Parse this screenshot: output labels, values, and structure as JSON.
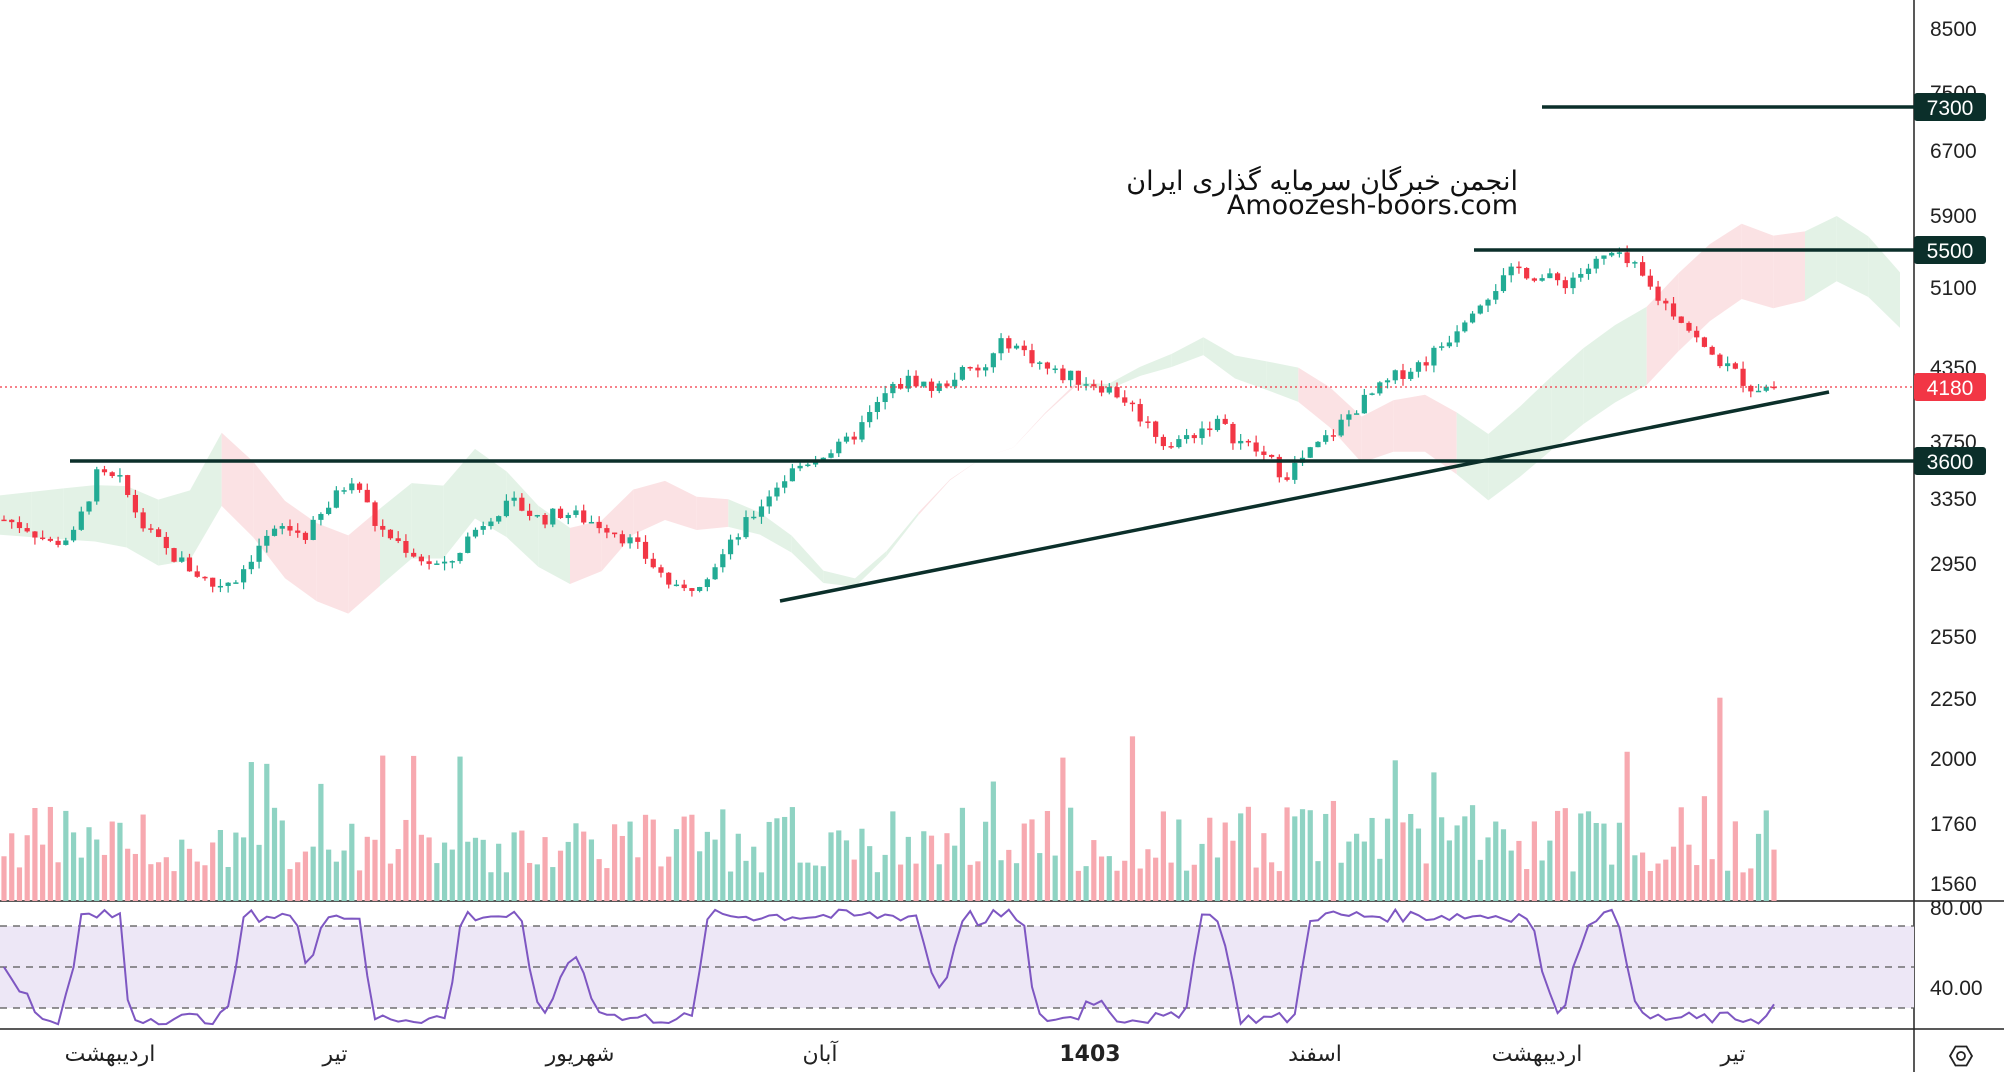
{
  "chart_data": {
    "type": "candlestick",
    "price_axis": {
      "scale": "log",
      "ticks": [
        "8500",
        "7500",
        "6700",
        "5900",
        "5100",
        "4350",
        "3750",
        "3350",
        "2950",
        "2550",
        "2250",
        "2000",
        "1760",
        "1560"
      ],
      "ylim": [
        1500,
        9000
      ]
    },
    "time_axis": {
      "labels": [
        "اردیبهشت",
        "تیر",
        "شهریور",
        "آبان",
        "1403",
        "اسفند",
        "اردیبهشت",
        "تیر"
      ],
      "bold_label": "1403"
    },
    "annotations": {
      "watermark_line1": "انجمن خبرگان سرمایه گذاری ایران",
      "watermark_line2": "Amoozesh-boors.com"
    },
    "horizontal_levels": [
      {
        "price": 7300,
        "label": "7300"
      },
      {
        "price": 5500,
        "label": "5500"
      },
      {
        "price": 3600,
        "label": "3600"
      }
    ],
    "current_price": {
      "price": 4180,
      "label": "4180",
      "color": "#f23645"
    },
    "trendline": {
      "start": {
        "index": 0.42,
        "price": 2700
      },
      "end": {
        "index": 0.99,
        "price": 4100
      }
    },
    "price_path": [
      3200,
      3150,
      3050,
      3100,
      3500,
      3450,
      3150,
      3000,
      2900,
      2800,
      2850,
      3050,
      3150,
      3100,
      3300,
      3500,
      3150,
      3050,
      2950,
      2900,
      3100,
      3250,
      3300,
      3200,
      3250,
      3200,
      3150,
      3050,
      2900,
      2750,
      2850,
      3000,
      3200,
      3400,
      3550,
      3650,
      3700,
      3900,
      4150,
      4250,
      4150,
      4300,
      4300,
      4600,
      4450,
      4300,
      4250,
      4200,
      4100,
      3900,
      3700,
      3800,
      3900,
      3750,
      3650,
      3500,
      3650,
      3800,
      4000,
      4150,
      4300,
      4400,
      4600,
      4900,
      5100,
      5300,
      5200,
      5150,
      5300,
      5450,
      5300,
      5000,
      4800,
      4500,
      4350,
      4180,
      4180
    ],
    "series": [
      {
        "name": "Volume",
        "scale_ticks": [
          "2250",
          "2000",
          "1760",
          "1560"
        ]
      },
      {
        "name": "RSI",
        "ticks": [
          "80.00",
          "40.00"
        ],
        "upper_band": 70,
        "lower_band": 30,
        "range": [
          0,
          100
        ]
      }
    ],
    "colors": {
      "up": "#22ab94",
      "down": "#f23645",
      "up_volume": "#8fd3c3",
      "down_volume": "#f7a9b0",
      "rsi_line": "#7e57c2",
      "rsi_band": "#ede7f6",
      "cloud_green": "#e3f2e6",
      "cloud_red": "#fbe2e4",
      "level_line": "#0b2f2a",
      "label_bg": "#0b2f2a"
    },
    "grid": false
  },
  "footer": {
    "settings_icon": "settings-icon"
  }
}
